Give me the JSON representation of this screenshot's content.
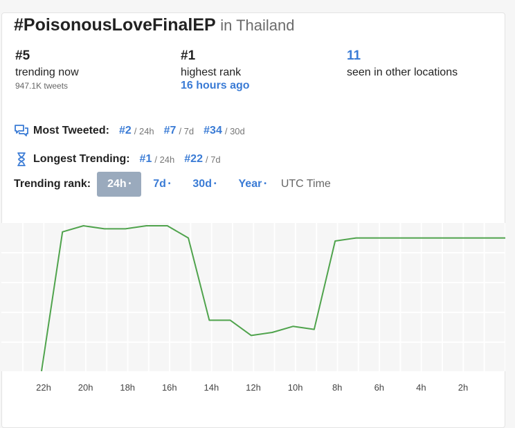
{
  "hashtag": "#PoisonousLoveFinalEP",
  "location": "in Thailand",
  "stats": {
    "now": {
      "value": "#5",
      "label": "trending now",
      "sub": "947.1K tweets"
    },
    "highest": {
      "value": "#1",
      "label": "highest rank",
      "ago": "16 hours ago"
    },
    "other": {
      "value": "11",
      "label": "seen in other locations"
    }
  },
  "most_tweeted": {
    "label": "Most Tweeted:",
    "items": [
      {
        "rank": "#2",
        "period": "/ 24h"
      },
      {
        "rank": "#7",
        "period": "/ 7d"
      },
      {
        "rank": "#34",
        "period": "/ 30d"
      }
    ]
  },
  "longest_trending": {
    "label": "Longest Trending:",
    "items": [
      {
        "rank": "#1",
        "period": "/ 24h"
      },
      {
        "rank": "#22",
        "period": "/ 7d"
      }
    ]
  },
  "trending_rank": {
    "label": "Trending rank:",
    "options": [
      "24h",
      "7d",
      "30d",
      "Year"
    ],
    "active": "24h",
    "dot": "•",
    "utc": "UTC Time"
  },
  "icons": {
    "tweets": "chat-bubbles-icon",
    "time": "hourglass-icon"
  },
  "colors": {
    "line": "#4fa34c",
    "accent": "#3a7bd5",
    "active_tab": "#9aaabd"
  },
  "chart_data": {
    "type": "line",
    "x_ticks": [
      "22h",
      "20h",
      "18h",
      "16h",
      "14h",
      "12h",
      "10h",
      "8h",
      "6h",
      "4h",
      "2h"
    ],
    "grid": true,
    "series": [
      {
        "points": [
          {
            "hoursAgo": 22.1,
            "rank": 50
          },
          {
            "hoursAgo": 21.1,
            "rank": 3
          },
          {
            "hoursAgo": 20.1,
            "rank": 1
          },
          {
            "hoursAgo": 19.1,
            "rank": 2
          },
          {
            "hoursAgo": 18.1,
            "rank": 2
          },
          {
            "hoursAgo": 17.1,
            "rank": 1
          },
          {
            "hoursAgo": 16.1,
            "rank": 1
          },
          {
            "hoursAgo": 15.1,
            "rank": 5
          },
          {
            "hoursAgo": 14.1,
            "rank": 32
          },
          {
            "hoursAgo": 13.1,
            "rank": 32
          },
          {
            "hoursAgo": 12.1,
            "rank": 37
          },
          {
            "hoursAgo": 11.1,
            "rank": 36
          },
          {
            "hoursAgo": 10.1,
            "rank": 34
          },
          {
            "hoursAgo": 9.1,
            "rank": 35
          },
          {
            "hoursAgo": 8.1,
            "rank": 6
          },
          {
            "hoursAgo": 7.1,
            "rank": 5
          },
          {
            "hoursAgo": 6.1,
            "rank": 5
          },
          {
            "hoursAgo": 5.1,
            "rank": 5
          },
          {
            "hoursAgo": 4.1,
            "rank": 5
          },
          {
            "hoursAgo": 3.1,
            "rank": 5
          },
          {
            "hoursAgo": 2.1,
            "rank": 5
          },
          {
            "hoursAgo": 1.1,
            "rank": 5
          },
          {
            "hoursAgo": 0.1,
            "rank": 5
          }
        ]
      }
    ]
  }
}
